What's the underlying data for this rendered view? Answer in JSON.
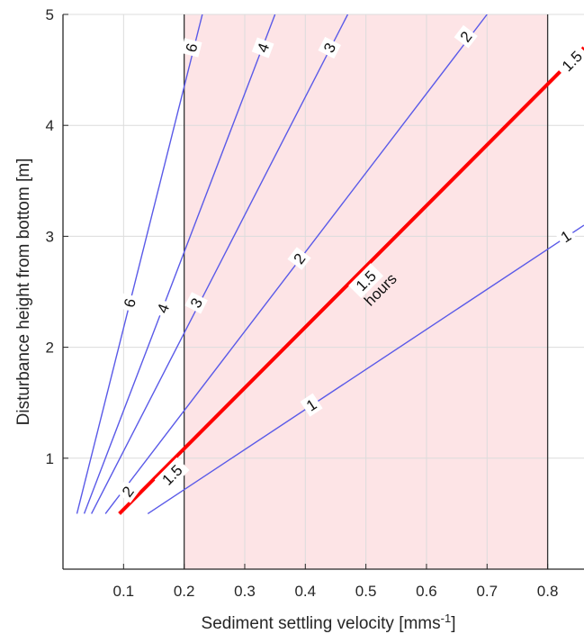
{
  "chart_data": {
    "type": "line",
    "title": "",
    "xlabel": "Sediment settling velocity [mms",
    "xlabel_sup": "-1",
    "xlabel_end": "]",
    "ylabel": "Disturbance height from bottom [m]",
    "xlim": [
      0.0,
      0.86
    ],
    "ylim": [
      0,
      5
    ],
    "xticks": [
      0.1,
      0.2,
      0.3,
      0.4,
      0.5,
      0.6,
      0.7,
      0.8
    ],
    "xtick_labels": [
      "0.1",
      "0.2",
      "0.3",
      "0.4",
      "0.5",
      "0.6",
      "0.7",
      "0.8"
    ],
    "yticks": [
      1,
      2,
      3,
      4,
      5
    ],
    "ytick_labels": [
      "1",
      "2",
      "3",
      "4",
      "5"
    ],
    "grid": true,
    "shaded_region": {
      "x": [
        0.2,
        0.8
      ],
      "color": "#fde4e6"
    },
    "series": [
      {
        "name": "6",
        "color": "#5a5ae8",
        "emphasis": false,
        "x": [
          0.023,
          0.23
        ],
        "y": [
          0.5,
          5.0
        ],
        "labels": [
          {
            "text": "6",
            "x": 0.11,
            "y": 2.4
          },
          {
            "text": "6",
            "x": 0.212,
            "y": 4.7
          }
        ]
      },
      {
        "name": "4",
        "color": "#5a5ae8",
        "emphasis": false,
        "x": [
          0.035,
          0.35
        ],
        "y": [
          0.5,
          5.0
        ],
        "labels": [
          {
            "text": "4",
            "x": 0.165,
            "y": 2.35
          },
          {
            "text": "4",
            "x": 0.33,
            "y": 4.7
          }
        ]
      },
      {
        "name": "3",
        "color": "#5a5ae8",
        "emphasis": false,
        "x": [
          0.047,
          0.47
        ],
        "y": [
          0.5,
          5.0
        ],
        "labels": [
          {
            "text": "3",
            "x": 0.22,
            "y": 2.4
          },
          {
            "text": "3",
            "x": 0.44,
            "y": 4.7
          }
        ]
      },
      {
        "name": "2",
        "color": "#5a5ae8",
        "emphasis": false,
        "x": [
          0.07,
          0.7
        ],
        "y": [
          0.5,
          5.0
        ],
        "labels": [
          {
            "text": "2",
            "x": 0.107,
            "y": 0.7
          },
          {
            "text": "2",
            "x": 0.39,
            "y": 2.8
          },
          {
            "text": "2",
            "x": 0.665,
            "y": 4.8
          }
        ]
      },
      {
        "name": "1.5",
        "color": "#ff0000",
        "emphasis": true,
        "x": [
          0.093,
          0.86
        ],
        "y": [
          0.5,
          4.7
        ],
        "labels": [
          {
            "text": "1.5",
            "x": 0.18,
            "y": 0.85
          },
          {
            "text": "1.5",
            "x": 0.5,
            "y": 2.6
          },
          {
            "text": "1.5",
            "x": 0.84,
            "y": 4.58
          }
        ],
        "annotation": {
          "text": "hours",
          "x": 0.53,
          "y": 2.6
        }
      },
      {
        "name": "1",
        "color": "#5a5ae8",
        "emphasis": false,
        "x": [
          0.14,
          0.86
        ],
        "y": [
          0.5,
          3.1
        ],
        "labels": [
          {
            "text": "1",
            "x": 0.41,
            "y": 1.48
          },
          {
            "text": "1",
            "x": 0.83,
            "y": 3.0
          }
        ]
      }
    ]
  }
}
